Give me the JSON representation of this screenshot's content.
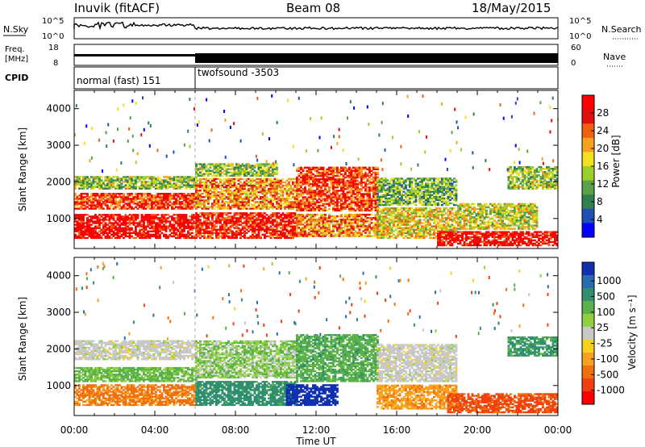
{
  "header": {
    "station": "Inuvik (fitACF)",
    "beam": "Beam 08",
    "date": "18/May/2015"
  },
  "top_panels": {
    "nsky": {
      "label": "N.Sky",
      "tick_top": "10^5",
      "tick_bottom": "10^0"
    },
    "nsearch": {
      "label": "N.Search",
      "tick_top": "10^5",
      "tick_bottom": "10^0"
    },
    "freq": {
      "label_line1": "Freq.",
      "label_line2": "[MHz]",
      "tick_top": "18",
      "tick_bottom": "8"
    },
    "nave": {
      "label": "Nave",
      "tick_top": "60",
      "tick_bottom": "0"
    },
    "cpid": {
      "label": "CPID",
      "segments": [
        {
          "text": "normal (fast) 151",
          "start_hour": 0,
          "end_hour": 6
        },
        {
          "text": "twofsound -3503",
          "start_hour": 6,
          "end_hour": 24
        }
      ]
    }
  },
  "chart_data": [
    {
      "type": "heatmap",
      "title": "",
      "xlabel": "Time UT",
      "ylabel": "Slant Range [km]",
      "xlim": [
        0,
        24
      ],
      "ylim": [
        180,
        4500
      ],
      "x_tick_labels": [
        "00:00",
        "04:00",
        "08:00",
        "12:00",
        "16:00",
        "20:00",
        "00:00"
      ],
      "y_ticks": [
        1000,
        2000,
        3000,
        4000
      ],
      "colorbar": {
        "label": "Power [dB]",
        "min": 0,
        "max": 32,
        "ticks": [
          4,
          8,
          12,
          16,
          20,
          24,
          28
        ],
        "colors": [
          "#0000ff",
          "#1f4fb4",
          "#2f7f4f",
          "#5aa24a",
          "#9ccf2a",
          "#f0e020",
          "#f8a020",
          "#f06010",
          "#e01010",
          "#ff0000"
        ]
      },
      "bands": [
        {
          "t0": 0.0,
          "t1": 6.0,
          "r0": 450,
          "r1": 1100,
          "v": 30
        },
        {
          "t0": 0.0,
          "t1": 6.0,
          "r0": 1250,
          "r1": 1700,
          "v": 26
        },
        {
          "t0": 0.0,
          "t1": 6.0,
          "r0": 1800,
          "r1": 2150,
          "v": 14
        },
        {
          "t0": 6.0,
          "t1": 11.0,
          "r0": 450,
          "r1": 1150,
          "v": 28
        },
        {
          "t0": 6.0,
          "t1": 11.0,
          "r0": 1250,
          "r1": 2100,
          "v": 22
        },
        {
          "t0": 6.0,
          "t1": 10.0,
          "r0": 2150,
          "r1": 2500,
          "v": 14
        },
        {
          "t0": 11.0,
          "t1": 15.0,
          "r0": 500,
          "r1": 1100,
          "v": 22
        },
        {
          "t0": 11.0,
          "t1": 15.0,
          "r0": 1200,
          "r1": 2400,
          "v": 26
        },
        {
          "t0": 15.0,
          "t1": 19.0,
          "r0": 450,
          "r1": 1300,
          "v": 18
        },
        {
          "t0": 15.0,
          "t1": 19.0,
          "r0": 1350,
          "r1": 2100,
          "v": 12
        },
        {
          "t0": 18.0,
          "t1": 24.0,
          "r0": 250,
          "r1": 650,
          "v": 30
        },
        {
          "t0": 19.0,
          "t1": 23.0,
          "r0": 700,
          "r1": 1400,
          "v": 16
        },
        {
          "t0": 21.5,
          "t1": 24.0,
          "r0": 1800,
          "r1": 2400,
          "v": 14
        }
      ]
    },
    {
      "type": "heatmap",
      "title": "",
      "xlabel": "Time UT",
      "ylabel": "Slant Range [km]",
      "xlim": [
        0,
        24
      ],
      "ylim": [
        180,
        4500
      ],
      "x_tick_labels": [
        "00:00",
        "04:00",
        "08:00",
        "12:00",
        "16:00",
        "20:00",
        "00:00"
      ],
      "y_ticks": [
        1000,
        2000,
        3000,
        4000
      ],
      "colorbar": {
        "label": "Velocity [m s⁻¹]",
        "tick_labels": [
          "1000",
          "500",
          "100",
          "25",
          "-25",
          "-100",
          "-500",
          "-1000"
        ],
        "colors": [
          "#1030b0",
          "#2a6bb0",
          "#2f8f6f",
          "#5ab04a",
          "#8fd040",
          "#c8c8c8",
          "#f8d020",
          "#f8a020",
          "#f07010",
          "#f04010",
          "#ff0000"
        ]
      },
      "bands": [
        {
          "t0": 0.0,
          "t1": 6.0,
          "r0": 450,
          "r1": 1000,
          "v": -120
        },
        {
          "t0": 0.0,
          "t1": 6.0,
          "r0": 1100,
          "r1": 1500,
          "v": 60
        },
        {
          "t0": 0.0,
          "t1": 6.0,
          "r0": 1700,
          "r1": 2200,
          "v": 0
        },
        {
          "t0": 6.0,
          "t1": 11.0,
          "r0": 450,
          "r1": 1100,
          "v": 150
        },
        {
          "t0": 6.0,
          "t1": 11.0,
          "r0": 1200,
          "r1": 2200,
          "v": 40
        },
        {
          "t0": 10.5,
          "t1": 13.0,
          "r0": 450,
          "r1": 1000,
          "v": 900
        },
        {
          "t0": 11.0,
          "t1": 15.0,
          "r0": 1100,
          "r1": 2400,
          "v": 80
        },
        {
          "t0": 15.0,
          "t1": 19.0,
          "r0": 350,
          "r1": 1000,
          "v": -80
        },
        {
          "t0": 15.0,
          "t1": 19.0,
          "r0": 1100,
          "r1": 2100,
          "v": 0
        },
        {
          "t0": 18.5,
          "t1": 24.0,
          "r0": 250,
          "r1": 750,
          "v": -300
        },
        {
          "t0": 21.5,
          "t1": 24.0,
          "r0": 1800,
          "r1": 2300,
          "v": 120
        }
      ]
    }
  ]
}
